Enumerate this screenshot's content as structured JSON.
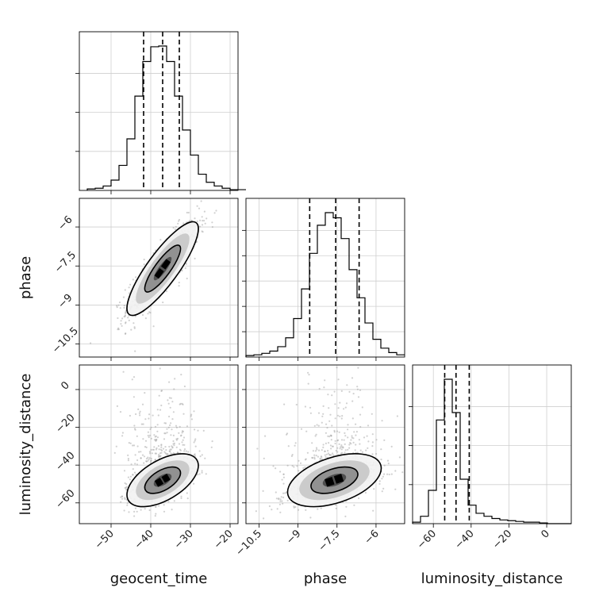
{
  "chart_data": {
    "type": "corner",
    "parameters": [
      {
        "name": "geocent_time",
        "range": [
          -58,
          -18
        ],
        "ticks": [
          -50,
          -40,
          -30,
          -20
        ],
        "quantiles": [
          -41.8,
          -37.0,
          -32.8
        ],
        "center": -37,
        "sd": 4.5
      },
      {
        "name": "phase",
        "range": [
          -11.0,
          -4.9
        ],
        "ticks": [
          -10.5,
          -9.0,
          -7.5,
          -6.0
        ],
        "quantiles": [
          -8.55,
          -7.55,
          -6.65
        ],
        "center": -7.6,
        "sd": 0.9
      },
      {
        "name": "luminosity_distance",
        "range": [
          -71,
          13
        ],
        "ticks": [
          -60,
          -40,
          -20,
          0
        ],
        "quantiles": [
          -54.0,
          -48.0,
          -41.0
        ],
        "center": -48,
        "sd": 7
      }
    ],
    "histograms": [
      {
        "param": "geocent_time",
        "bin_start": -56,
        "bin_width": 2,
        "counts": [
          2,
          3,
          6,
          14,
          34,
          70,
          128,
          175,
          195,
          196,
          175,
          128,
          82,
          48,
          22,
          11,
          6,
          3,
          1,
          1
        ]
      },
      {
        "param": "phase",
        "bin_start": -11.0,
        "bin_width": 0.305,
        "counts": [
          2,
          3,
          5,
          8,
          14,
          26,
          52,
          92,
          140,
          178,
          195,
          188,
          160,
          118,
          80,
          46,
          24,
          12,
          6,
          3
        ]
      },
      {
        "param": "luminosity_distance",
        "bin_start": -71,
        "bin_width": 4.2,
        "counts": [
          2,
          10,
          45,
          140,
          195,
          150,
          60,
          25,
          14,
          10,
          7,
          5,
          4,
          3,
          2,
          2,
          1,
          0,
          0,
          0
        ]
      }
    ],
    "pairs": [
      {
        "x": "geocent_time",
        "y": "phase",
        "correlation": 0.85
      },
      {
        "x": "geocent_time",
        "y": "luminosity_distance",
        "correlation": 0.55
      },
      {
        "x": "phase",
        "y": "luminosity_distance",
        "correlation": 0.45
      }
    ],
    "contour_levels": [
      0.5,
      1.0,
      1.5,
      2.0
    ],
    "grid": true
  }
}
